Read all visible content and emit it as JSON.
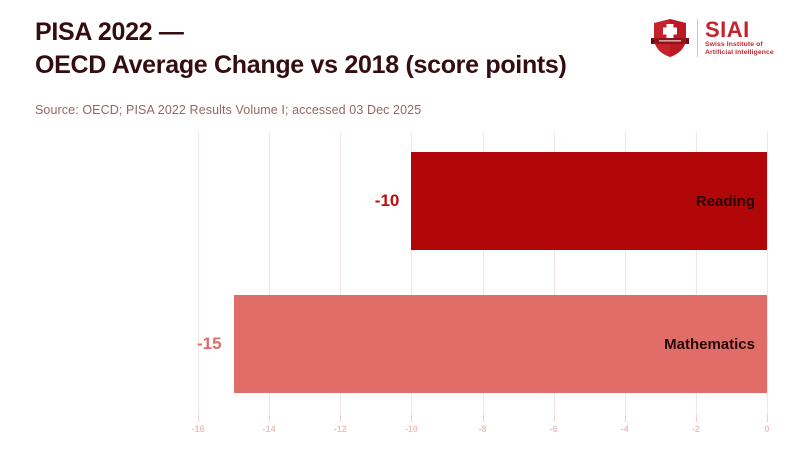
{
  "header": {
    "title_line1": "PISA 2022 —",
    "title_line2": "OECD Average Change vs 2018 (score points)",
    "source": "Source: OECD; PISA 2022 Results Volume I; accessed 03 Dec 2025"
  },
  "logo": {
    "name": "SIAI",
    "subtitle_line1": "Swiss Institute of",
    "subtitle_line2": "Artificial Intelligence",
    "brand_color": "#c4252c"
  },
  "chart_data": {
    "type": "bar",
    "orientation": "horizontal",
    "title": "PISA 2022 — OECD Average Change vs 2018 (score points)",
    "categories": [
      "Reading",
      "Mathematics"
    ],
    "values": [
      -10,
      -15
    ],
    "value_labels": [
      "-10",
      "-15"
    ],
    "bar_colors": [
      "#b20709",
      "#e06d68"
    ],
    "value_label_colors": [
      "#bb0f0f",
      "#e06d68"
    ],
    "xlim": [
      -16,
      0
    ],
    "xticks": [
      -16,
      -14,
      -12,
      -10,
      -8,
      -6,
      -4,
      -2,
      0
    ],
    "grid": true,
    "legend": "none",
    "colors": {
      "gridline": "#f9e4e4",
      "tick_mark": "#f3cdcd",
      "tick_label": "#f0bfbf",
      "category_label": "#270808",
      "title": "#350d10",
      "source": "#976660"
    }
  }
}
